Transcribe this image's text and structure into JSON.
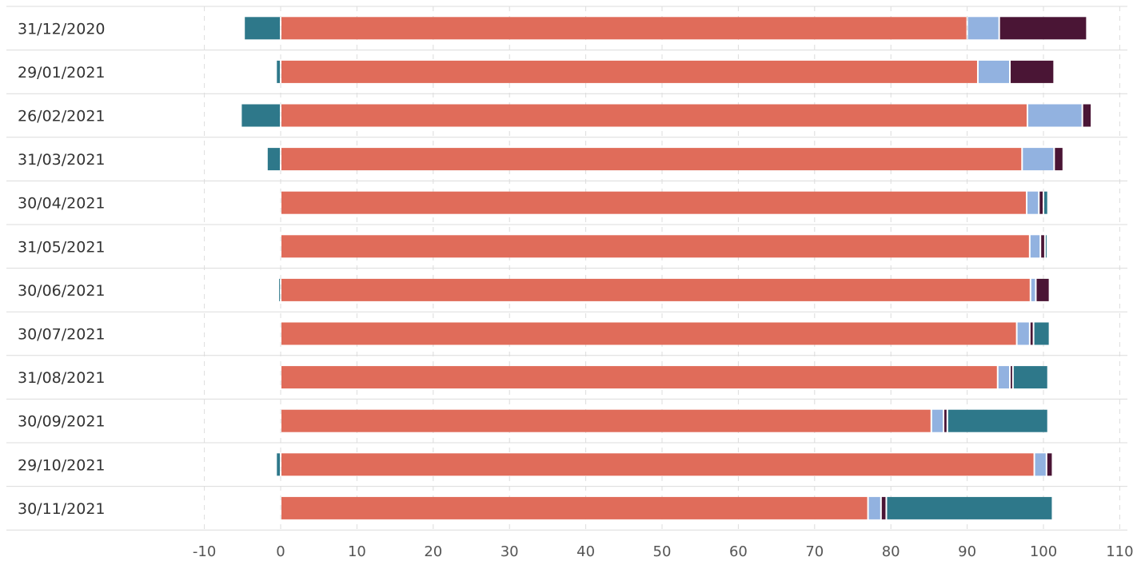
{
  "chart_data": {
    "type": "bar",
    "orientation": "horizontal",
    "stacked": true,
    "categories": [
      "31/12/2020",
      "29/01/2021",
      "26/02/2021",
      "31/03/2021",
      "30/04/2021",
      "31/05/2021",
      "30/06/2021",
      "30/07/2021",
      "31/08/2021",
      "30/09/2021",
      "29/10/2021",
      "30/11/2021"
    ],
    "series": [
      {
        "color": "#e06c5a",
        "values": [
          90.0,
          91.4,
          97.9,
          97.2,
          97.8,
          98.2,
          98.3,
          96.5,
          94.0,
          85.3,
          98.8,
          77.0
        ]
      },
      {
        "color": "#92b2e0",
        "values": [
          4.2,
          4.2,
          7.2,
          4.2,
          1.6,
          1.4,
          0.7,
          1.7,
          1.6,
          1.6,
          1.6,
          1.7
        ]
      },
      {
        "color": "#4a1535",
        "values": [
          11.5,
          5.8,
          1.2,
          1.2,
          0.6,
          0.6,
          1.8,
          0.5,
          0.4,
          0.5,
          0.8,
          0.7
        ]
      },
      {
        "color": "#2e788a",
        "values": [
          -4.8,
          -0.6,
          -5.2,
          -1.8,
          0.6,
          0.2,
          -0.3,
          2.1,
          4.6,
          13.2,
          -0.6,
          21.8
        ]
      }
    ],
    "xticks": [
      -10,
      0,
      10,
      20,
      30,
      40,
      50,
      60,
      70,
      80,
      90,
      100,
      110
    ],
    "xlim": [
      -20,
      111
    ],
    "grid": true,
    "legend": "none"
  }
}
